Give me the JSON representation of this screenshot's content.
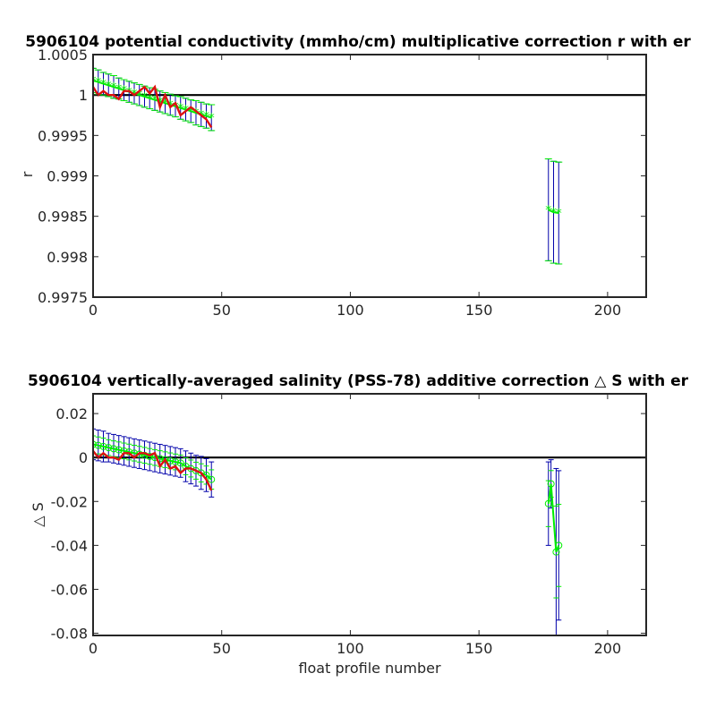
{
  "chart_data": [
    {
      "type": "line",
      "title": "5906104 potential conductivity (mmho/cm) multiplicative correction r with er",
      "xlabel": "",
      "ylabel": "r",
      "xlim": [
        0,
        215
      ],
      "ylim": [
        0.9975,
        1.0005
      ],
      "xticks": [
        0,
        50,
        100,
        150,
        200
      ],
      "xtick_labels": [
        "0",
        "50",
        "100",
        "150",
        "200"
      ],
      "yticks": [
        1.0005,
        1,
        0.9995,
        0.999,
        0.9985,
        0.998,
        0.9975
      ],
      "ytick_labels": [
        "1.0005",
        "1",
        "0.9995",
        "0.999",
        "0.9985",
        "0.998",
        "0.9975"
      ],
      "grid": false,
      "reference_line": 1,
      "colors": {
        "errorbar": "#0000aa",
        "fit": "#00ee00",
        "correction": "#dd1111",
        "reference": "#000000"
      },
      "series": [
        {
          "role": "fit",
          "x": [
            0,
            2,
            4,
            6,
            8,
            10,
            12,
            14,
            16,
            18,
            20,
            22,
            24,
            26,
            28,
            30,
            32,
            34,
            36,
            38,
            40,
            42,
            44,
            46
          ],
          "y": [
            1.00018,
            1.00016,
            1.00014,
            1.00012,
            1.0001,
            1.00008,
            1.00006,
            1.00004,
            1.00002,
            1.0,
            0.99998,
            0.99996,
            0.99994,
            0.99992,
            0.9999,
            0.99988,
            0.99986,
            0.99984,
            0.99982,
            0.9998,
            0.99978,
            0.99976,
            0.99974,
            0.99972
          ],
          "err": [
            0.00015,
            0.00015,
            0.00014,
            0.00014,
            0.00014,
            0.00013,
            0.00013,
            0.00013,
            0.00013,
            0.00013,
            0.00013,
            0.00013,
            0.00013,
            0.00013,
            0.00013,
            0.00013,
            0.00013,
            0.00014,
            0.00014,
            0.00014,
            0.00015,
            0.00015,
            0.00015,
            0.00016
          ]
        },
        {
          "role": "fit",
          "x": [
            177,
            179,
            181
          ],
          "y": [
            0.99858,
            0.99855,
            0.99854
          ],
          "err": [
            0.00063,
            0.00063,
            0.00063
          ]
        },
        {
          "role": "correction",
          "x": [
            0,
            2,
            4,
            6,
            8,
            10,
            12,
            14,
            16,
            18,
            20,
            22,
            24,
            26,
            28,
            30,
            32,
            34,
            36,
            38,
            40,
            42,
            44,
            46
          ],
          "y": [
            1.0001,
            1.0,
            1.00005,
            1.0,
            1.0,
            0.99995,
            1.00005,
            1.00005,
            1.0,
            1.00005,
            1.0001,
            1.00002,
            1.0001,
            0.99985,
            1.0,
            0.99985,
            0.9999,
            0.99975,
            0.9998,
            0.99985,
            0.9998,
            0.99975,
            0.9997,
            0.9996
          ]
        }
      ]
    },
    {
      "type": "line",
      "title": "5906104 vertically-averaged salinity (PSS-78) additive correction △ S with er",
      "xlabel": "float profile number",
      "ylabel": "△ S",
      "xlim": [
        0,
        215
      ],
      "ylim": [
        -0.081,
        0.029
      ],
      "xticks": [
        0,
        50,
        100,
        150,
        200
      ],
      "xtick_labels": [
        "0",
        "50",
        "100",
        "150",
        "200"
      ],
      "yticks": [
        0.02,
        0,
        -0.02,
        -0.04,
        -0.06,
        -0.08
      ],
      "ytick_labels": [
        "0.02",
        "0",
        "-0.02",
        "-0.04",
        "-0.06",
        "-0.08"
      ],
      "grid": false,
      "reference_line": 0,
      "colors": {
        "errorbar": "#0000aa",
        "fit": "#00ee00",
        "correction": "#dd1111",
        "reference": "#000000"
      },
      "series": [
        {
          "role": "fit",
          "x": [
            0,
            2,
            4,
            6,
            8,
            10,
            12,
            14,
            16,
            18,
            20,
            22,
            24,
            26,
            28,
            30,
            32,
            34,
            36,
            38,
            40,
            42,
            44,
            46
          ],
          "y": [
            0.006,
            0.0055,
            0.005,
            0.0045,
            0.004,
            0.0035,
            0.003,
            0.0025,
            0.002,
            0.0015,
            0.001,
            0.0005,
            0.0,
            -0.0005,
            -0.001,
            -0.0015,
            -0.002,
            -0.0025,
            -0.004,
            -0.005,
            -0.006,
            -0.007,
            -0.008,
            -0.01
          ],
          "err": [
            0.007,
            0.007,
            0.007,
            0.0065,
            0.0065,
            0.0065,
            0.0065,
            0.0065,
            0.0065,
            0.0065,
            0.0065,
            0.0065,
            0.0065,
            0.0065,
            0.0065,
            0.0065,
            0.0065,
            0.0065,
            0.007,
            0.007,
            0.007,
            0.0075,
            0.0075,
            0.008
          ]
        },
        {
          "role": "fit",
          "x": [
            177,
            178,
            180,
            181
          ],
          "y": [
            -0.021,
            -0.012,
            -0.043,
            -0.04
          ],
          "err": [
            0.019,
            0.011,
            0.038,
            0.034
          ]
        },
        {
          "role": "correction",
          "x": [
            0,
            2,
            4,
            6,
            8,
            10,
            12,
            14,
            16,
            18,
            20,
            22,
            24,
            26,
            28,
            30,
            32,
            34,
            36,
            38,
            40,
            42,
            44,
            46
          ],
          "y": [
            0.003,
            0.0,
            0.002,
            0.0,
            0.0,
            -0.001,
            0.002,
            0.002,
            0.0,
            0.002,
            0.002,
            0.001,
            0.002,
            -0.004,
            -0.001,
            -0.005,
            -0.004,
            -0.007,
            -0.005,
            -0.005,
            -0.006,
            -0.007,
            -0.01,
            -0.015
          ]
        }
      ]
    }
  ]
}
